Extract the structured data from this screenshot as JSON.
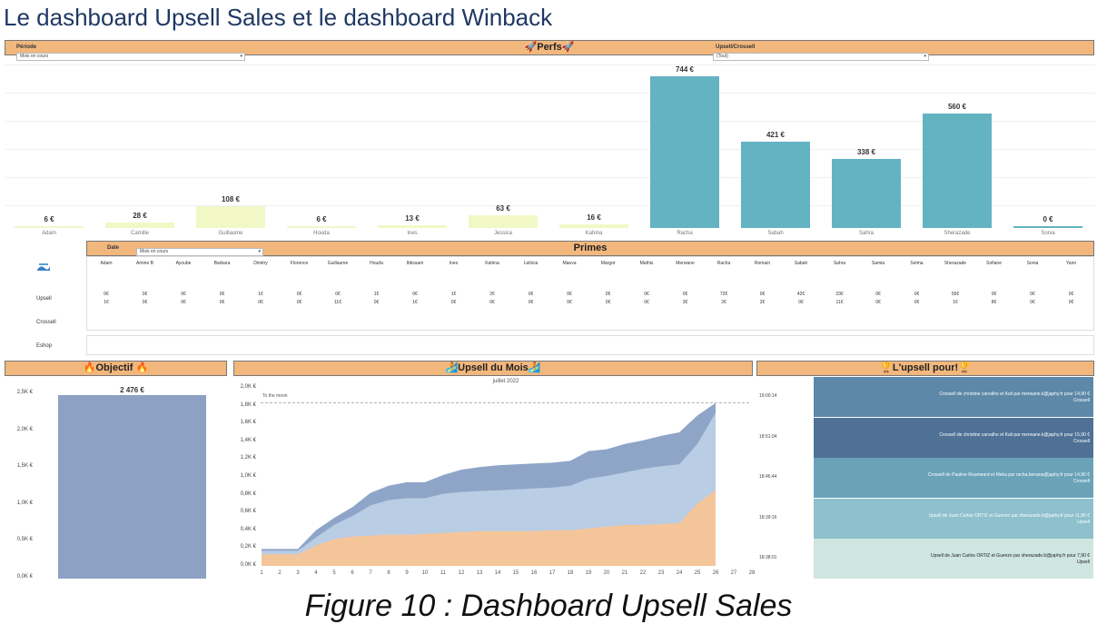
{
  "doc_title": "Le dashboard Upsell Sales et le dashboard Winback",
  "caption": "Figure 10 : Dashboard Upsell Sales",
  "colors": {
    "header": "#f2b77d",
    "teal": "#63b3c2",
    "yellow": "#f1f8c6",
    "objectif": "#8da1c4"
  },
  "perfs": {
    "header": "🚀Perfs🚀",
    "periode_label": "Période",
    "periode_value": "Mois en cours",
    "upsell_label": "Upsell/Crossell",
    "upsell_value": "(Tout)"
  },
  "perfs_chart": {
    "type": "bar",
    "categories": [
      "Adam",
      "Camille",
      "Guillaume",
      "Houda",
      "Ines",
      "Jessica",
      "Kahina",
      "Racha",
      "Sabah",
      "Sahra",
      "Sherazade",
      "Sonia"
    ],
    "values": [
      6,
      28,
      108,
      6,
      13,
      63,
      16,
      744,
      421,
      338,
      560,
      0
    ],
    "labels": [
      "6 €",
      "28 €",
      "108 €",
      "6 €",
      "13 €",
      "63 €",
      "16 €",
      "744 €",
      "421 €",
      "338 €",
      "560 €",
      "0 €"
    ],
    "colors": [
      "yellow",
      "yellow",
      "yellow",
      "yellow",
      "yellow",
      "yellow",
      "yellow",
      "teal",
      "teal",
      "teal",
      "teal",
      "teal"
    ],
    "ylim": [
      0,
      800
    ],
    "grid": true
  },
  "primes": {
    "header": "Primes",
    "date_label": "Date",
    "date_value": "Mois en cours",
    "names": [
      "Adam",
      "Amine B",
      "Ayoube",
      "Barbara",
      "Dimitry",
      "Florence",
      "Guillaume",
      "Houda",
      "Ibtissam",
      "Ines",
      "Kahina",
      "Leiticia",
      "Maeva",
      "Margot",
      "Mathis",
      "Merwane",
      "Racha",
      "Romain",
      "Sabah",
      "Sahra",
      "Samia",
      "Selma",
      "Sherazade",
      "Sofiane",
      "Sonia",
      "Yann"
    ],
    "row_upsell_1": [
      "0€",
      "0€",
      "0€",
      "0€",
      "1€",
      "0€",
      "0€",
      "1€",
      "0€",
      "1€",
      "2€",
      "0€",
      "0€",
      "0€",
      "0€",
      "0€",
      "72€",
      "0€",
      "42€",
      "23€",
      "0€",
      "0€",
      "55€",
      "0€",
      "0€",
      "0€"
    ],
    "row_upsell_2": [
      "1€",
      "0€",
      "0€",
      "0€",
      "0€",
      "0€",
      "11€",
      "0€",
      "1€",
      "0€",
      "0€",
      "0€",
      "0€",
      "0€",
      "0€",
      "3€",
      "2€",
      "2€",
      "0€",
      "11€",
      "0€",
      "0€",
      "1€",
      "8€",
      "0€",
      "0€"
    ],
    "row_labels": [
      "Upsell",
      "Crossell",
      "Eshop"
    ]
  },
  "objectif": {
    "header": "🔥Objectif 🔥",
    "value_label": "2 476 €",
    "value": 2476,
    "ylim": [
      0,
      2500
    ],
    "yticks": [
      "2,5K €",
      "2,0K €",
      "1,5K €",
      "1,0K €",
      "0,5K €",
      "0,0K €"
    ]
  },
  "upsell_mois": {
    "header": "🏄Upsell du Mois🏄",
    "month": "juillet 2022",
    "reference": "To the moon",
    "yticks": [
      "2,0K €",
      "1,8K €",
      "1,6K €",
      "1,4K €",
      "1,2K €",
      "1,0K €",
      "0,8K €",
      "0,6K €",
      "0,4K €",
      "0,2K €",
      "0,0K €"
    ],
    "xticks": [
      "1",
      "2",
      "3",
      "4",
      "5",
      "6",
      "7",
      "8",
      "9",
      "10",
      "11",
      "12",
      "13",
      "14",
      "15",
      "16",
      "17",
      "18",
      "19",
      "20",
      "21",
      "22",
      "23",
      "24",
      "25",
      "26",
      "27",
      "28"
    ]
  },
  "chart_data": {
    "type": "area",
    "title": "juillet 2022",
    "x": [
      1,
      2,
      3,
      4,
      5,
      6,
      7,
      8,
      9,
      10,
      11,
      12,
      13,
      14,
      15,
      16,
      17,
      18,
      19,
      20,
      21,
      22,
      23,
      24,
      25,
      26
    ],
    "series": [
      {
        "values": [
          130,
          130,
          130,
          230,
          300,
          330,
          340,
          350,
          350,
          360,
          370,
          380,
          390,
          390,
          390,
          390,
          400,
          400,
          420,
          440,
          460,
          460,
          470,
          480,
          700,
          850
        ]
      },
      {
        "values": [
          170,
          170,
          170,
          320,
          460,
          560,
          680,
          740,
          760,
          760,
          810,
          830,
          840,
          850,
          860,
          870,
          880,
          900,
          980,
          1010,
          1050,
          1090,
          1120,
          1140,
          1370,
          1720
        ]
      },
      {
        "values": [
          190,
          190,
          190,
          400,
          540,
          660,
          820,
          900,
          940,
          940,
          1020,
          1080,
          1110,
          1130,
          1140,
          1150,
          1160,
          1180,
          1290,
          1310,
          1370,
          1410,
          1460,
          1500,
          1690,
          1830
        ]
      }
    ],
    "reference_line": {
      "label": "To the moon",
      "value": 1830
    },
    "ylim": [
      0,
      2000
    ]
  },
  "feed": {
    "header": "🏆L'upsell pour!🏆",
    "items": [
      {
        "time": "19:00:14",
        "text": "Crossell de christine carvalho et Kali   par merwane.k@japhy.fr pour 14,90 €",
        "type": "Crossell"
      },
      {
        "time": "18:51:04",
        "text": "Crossell de christine carvalho et Kali   par merwane.k@japhy.fr pour 15,90 €",
        "type": "Crossell"
      },
      {
        "time": "18:46:44",
        "text": "Crossell de Pauline Roumeard et Meka   par racha.benana@japhy.fr pour 14,90 €",
        "type": "Crossell"
      },
      {
        "time": "18:39:16",
        "text": "Upsell de Juan Carlos ORTIZ et Guenzo   par sherazade.b@japhy.fr pour 11,90 €",
        "type": "Upsell"
      },
      {
        "time": "18:38:01",
        "text": "Upsell de Juan Carlos ORTIZ et Guenzo   par sherazade.b@japhy.fr pour 7,90 €",
        "type": "Upsell"
      }
    ]
  }
}
